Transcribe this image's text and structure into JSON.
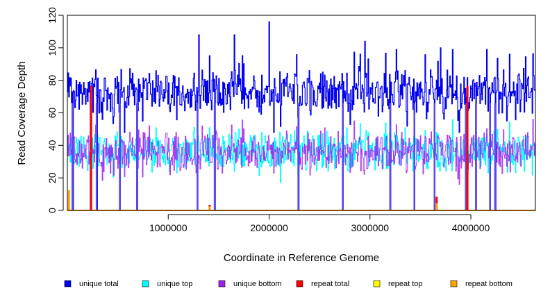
{
  "chart_data": {
    "type": "line",
    "title": "",
    "xlabel": "Coordinate in Reference Genome",
    "ylabel": "Read Coverage Depth",
    "xlim": [
      0,
      4640000
    ],
    "ylim": [
      0,
      120
    ],
    "xticks": [
      1000000,
      2000000,
      3000000,
      4000000
    ],
    "xtick_labels": [
      "1000000",
      "2000000",
      "3000000",
      "4000000"
    ],
    "yticks": [
      0,
      20,
      40,
      60,
      80,
      100,
      120
    ],
    "ytick_labels": [
      "0",
      "20",
      "40",
      "60",
      "80",
      "100",
      "120"
    ],
    "grid": false,
    "legend_position": "bottom",
    "series": [
      {
        "name": "unique total",
        "color": "#0000ee",
        "summary": "fluctuates roughly between 55 and 90 (mean ~73) along the genome",
        "peaks": [
          [
            1300000,
            108
          ],
          [
            1650000,
            108
          ],
          [
            2000000,
            116
          ],
          [
            2950000,
            104
          ],
          [
            3700000,
            100
          ]
        ],
        "dropouts_to_zero": [
          50000,
          230000,
          290000,
          520000,
          690000,
          1290000,
          1460000,
          2290000,
          2730000,
          3200000,
          3440000,
          3640000,
          3950000,
          4050000,
          4190000,
          4240000
        ]
      },
      {
        "name": "unique top",
        "color": "#00ffff",
        "summary": "fluctuates roughly between 22 and 52 (mean ~37) along the genome"
      },
      {
        "name": "unique bottom",
        "color": "#a020f0",
        "summary": "fluctuates roughly between 22 and 52 (mean ~37) along the genome"
      },
      {
        "name": "repeat total",
        "color": "#ff0000",
        "summary": "0 across most of the genome with short spikes",
        "spikes": [
          [
            230000,
            76
          ],
          [
            1410000,
            3
          ],
          [
            3660000,
            8
          ],
          [
            3960000,
            76
          ]
        ]
      },
      {
        "name": "repeat top",
        "color": "#ffff00",
        "summary": "0 across most of the genome"
      },
      {
        "name": "repeat bottom",
        "color": "#ffa500",
        "summary": "0 across most of the genome",
        "spikes": [
          [
            10000,
            12
          ],
          [
            1410000,
            2
          ],
          [
            3660000,
            4
          ]
        ]
      }
    ]
  }
}
